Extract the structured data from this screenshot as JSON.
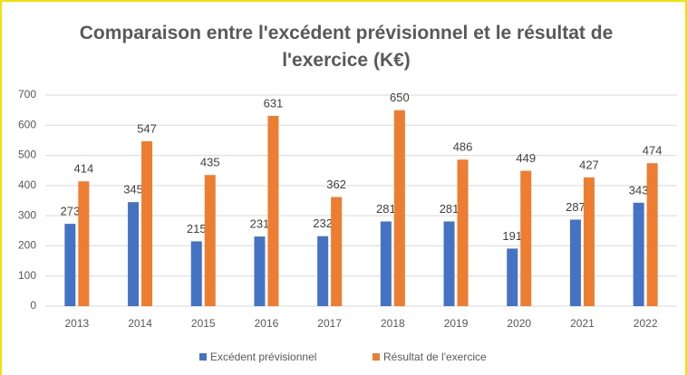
{
  "chart_data": {
    "type": "bar",
    "title": "Comparaison entre l'excédent prévisionnel et le résultat de l'exercice (K€)",
    "categories": [
      "2013",
      "2014",
      "2015",
      "2016",
      "2017",
      "2018",
      "2019",
      "2020",
      "2021",
      "2022"
    ],
    "series": [
      {
        "name": "Excédent prévisionnel",
        "color": "#4472c4",
        "values": [
          273,
          345,
          215,
          231,
          232,
          281,
          281,
          191,
          287,
          343
        ]
      },
      {
        "name": "Résultat de l'exercice",
        "color": "#ed7d31",
        "values": [
          414,
          547,
          435,
          631,
          362,
          650,
          486,
          449,
          427,
          474
        ]
      }
    ],
    "ylim": [
      0,
      700
    ],
    "yticks": [
      0,
      100,
      200,
      300,
      400,
      500,
      600,
      700
    ],
    "grid": true,
    "legend": "bottom"
  }
}
